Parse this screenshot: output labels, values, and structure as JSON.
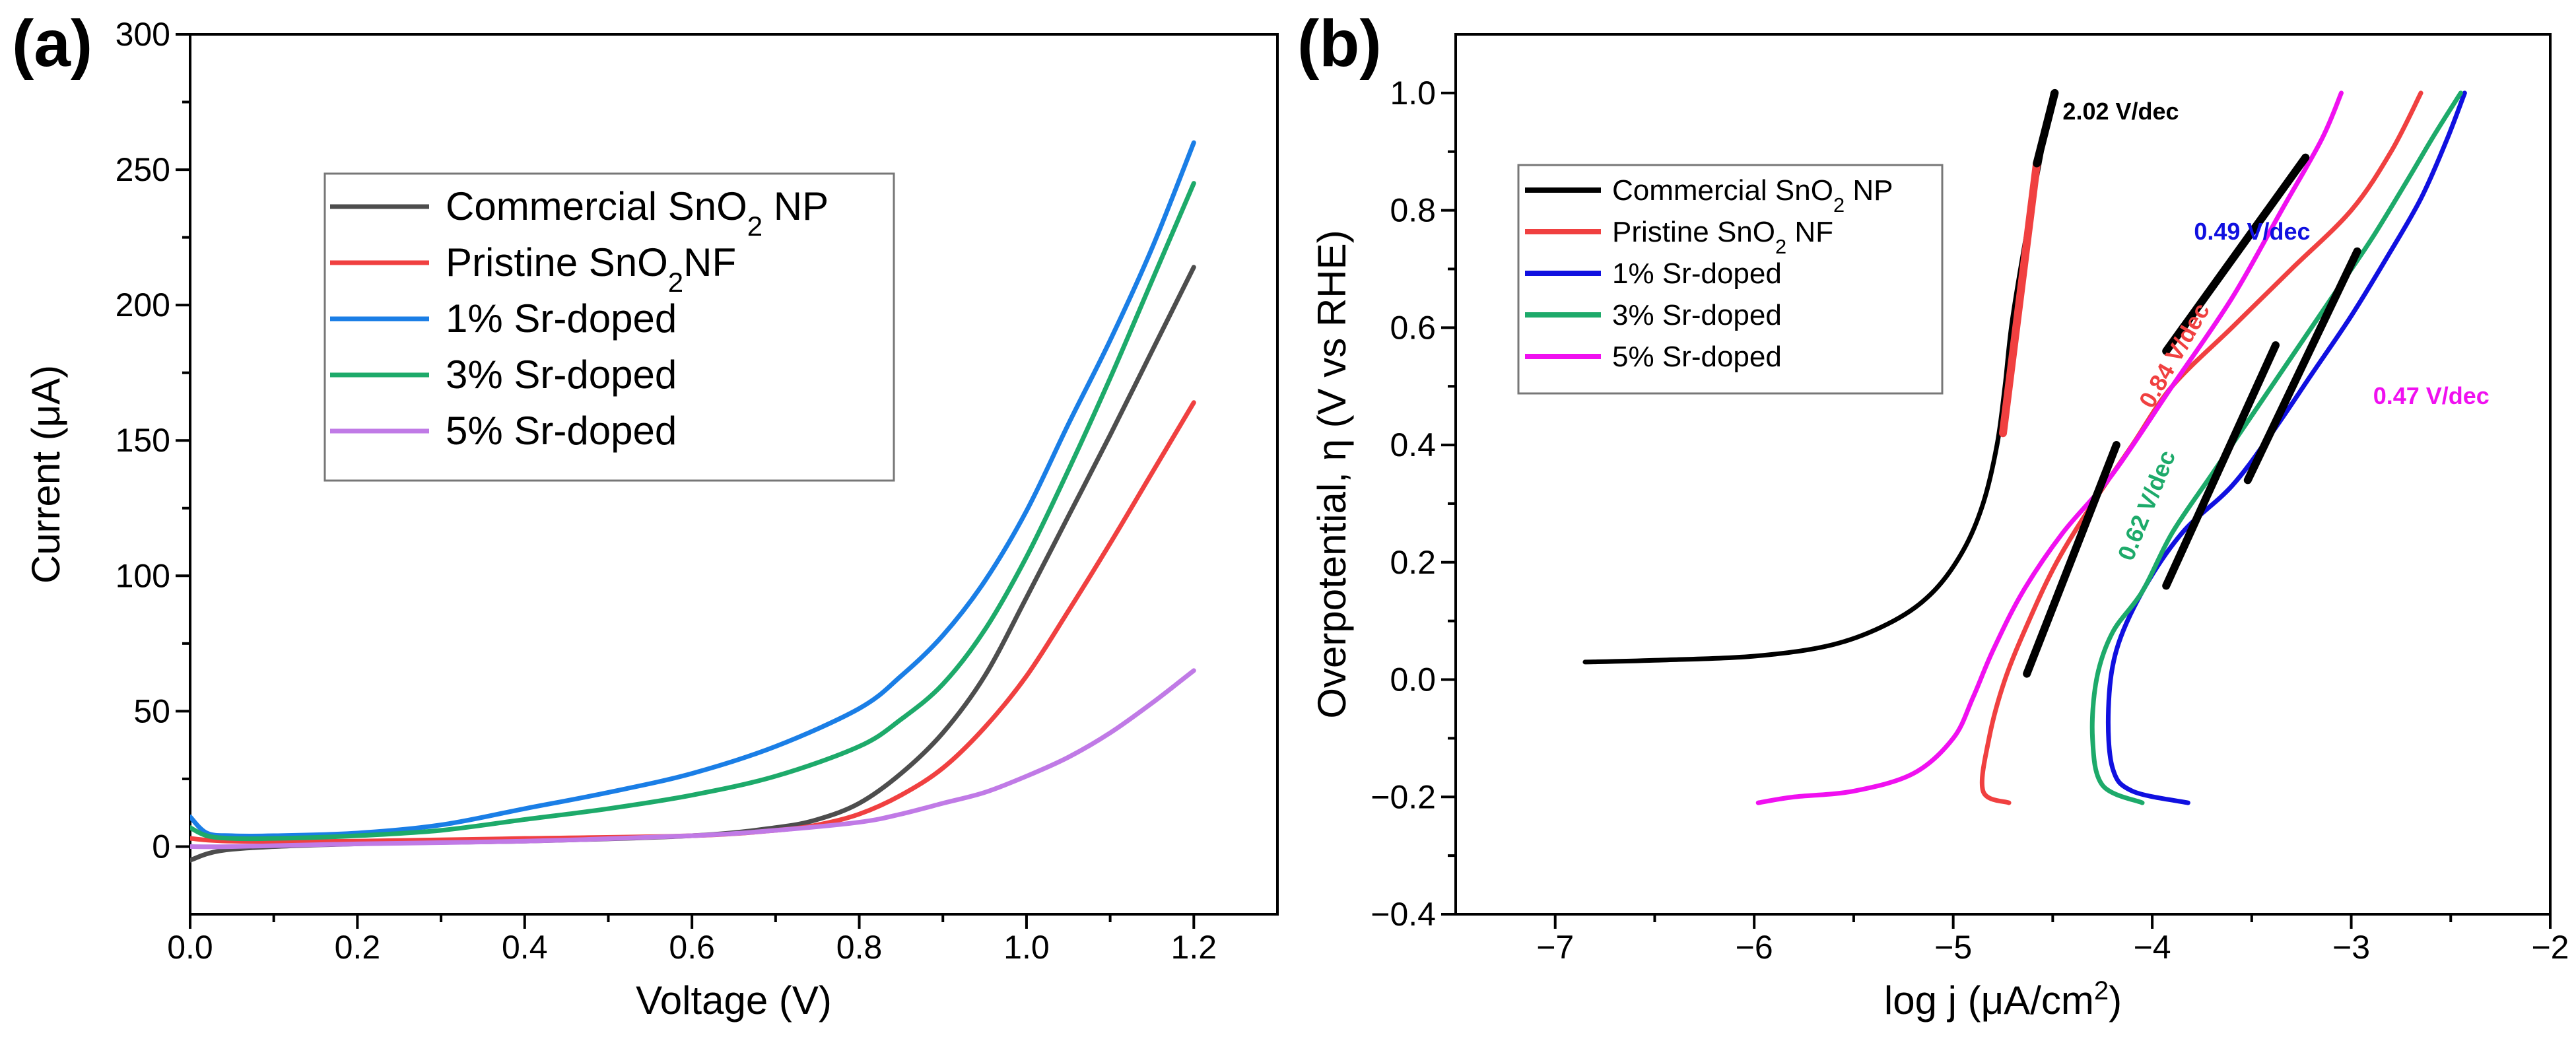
{
  "colors": {
    "commercial": "#4d4d4d",
    "pristine": "#f04040",
    "sr1": "#1a7ee6",
    "sr3": "#1daa6a",
    "sr5": "#c07ae6",
    "b_commercial": "#000000",
    "b_pristine": "#f04040",
    "b_sr1": "#1010e0",
    "b_sr3": "#1daa6a",
    "b_sr5": "#f010f0",
    "fit": "#000000"
  },
  "chart_data": [
    {
      "id": "a",
      "panel_label": "(a)",
      "type": "line",
      "xlabel": "Voltage (V)",
      "ylabel": "Current (μA)",
      "xlim": [
        0,
        1.3
      ],
      "ylim": [
        -25,
        300
      ],
      "xticks": [
        0.0,
        0.2,
        0.4,
        0.6,
        0.8,
        1.0,
        1.2
      ],
      "xtick_labels": [
        "0.0",
        "0.2",
        "0.4",
        "0.6",
        "0.8",
        "1.0",
        "1.2"
      ],
      "yticks": [
        0,
        50,
        100,
        150,
        200,
        250,
        300
      ],
      "ytick_labels": [
        "0",
        "50",
        "100",
        "150",
        "200",
        "250",
        "300"
      ],
      "legend_position": "upper-left",
      "legend": [
        {
          "series": "commercial",
          "main": "Commercial SnO",
          "sub": "2",
          "tail": " NP"
        },
        {
          "series": "pristine",
          "main": "Pristine SnO",
          "sub": "2",
          "tail": "NF"
        },
        {
          "series": "sr1",
          "main": "1% Sr-doped",
          "sub": "",
          "tail": ""
        },
        {
          "series": "sr3",
          "main": "3% Sr-doped",
          "sub": "",
          "tail": ""
        },
        {
          "series": "sr5",
          "main": "5% Sr-doped",
          "sub": "",
          "tail": ""
        }
      ],
      "series": [
        {
          "key": "commercial",
          "name": "Commercial SnO2 NP",
          "x": [
            0.0,
            0.05,
            0.2,
            0.4,
            0.6,
            0.7,
            0.75,
            0.8,
            0.85,
            0.9,
            0.95,
            1.0,
            1.05,
            1.1,
            1.15,
            1.2
          ],
          "y": [
            -5,
            -1,
            1,
            2,
            4,
            7,
            10,
            16,
            27,
            42,
            63,
            92,
            122,
            152,
            183,
            214
          ]
        },
        {
          "key": "pristine",
          "name": "Pristine SnO2NF",
          "x": [
            0.0,
            0.05,
            0.2,
            0.4,
            0.6,
            0.7,
            0.75,
            0.8,
            0.85,
            0.9,
            0.95,
            1.0,
            1.05,
            1.1,
            1.15,
            1.2
          ],
          "y": [
            3,
            2,
            2,
            3,
            4,
            6,
            8,
            12,
            19,
            29,
            44,
            63,
            87,
            112,
            138,
            164
          ]
        },
        {
          "key": "sr1",
          "name": "1% Sr-doped",
          "x": [
            0.0,
            0.02,
            0.05,
            0.1,
            0.2,
            0.3,
            0.4,
            0.5,
            0.6,
            0.7,
            0.8,
            0.85,
            0.9,
            0.95,
            1.0,
            1.05,
            1.1,
            1.15,
            1.2
          ],
          "y": [
            11,
            5,
            4,
            4,
            5,
            8,
            14,
            20,
            27,
            37,
            51,
            63,
            78,
            98,
            124,
            156,
            187,
            221,
            260
          ]
        },
        {
          "key": "sr3",
          "name": "3% Sr-doped",
          "x": [
            0.0,
            0.02,
            0.05,
            0.1,
            0.2,
            0.3,
            0.4,
            0.5,
            0.6,
            0.7,
            0.8,
            0.85,
            0.9,
            0.95,
            1.0,
            1.05,
            1.1,
            1.15,
            1.2
          ],
          "y": [
            7,
            4,
            3,
            3,
            4,
            6,
            10,
            14,
            19,
            26,
            37,
            47,
            60,
            80,
            107,
            139,
            173,
            209,
            245
          ]
        },
        {
          "key": "sr5",
          "name": "5% Sr-doped",
          "x": [
            0.0,
            0.05,
            0.2,
            0.4,
            0.6,
            0.7,
            0.8,
            0.85,
            0.9,
            0.95,
            1.0,
            1.05,
            1.1,
            1.15,
            1.2
          ],
          "y": [
            0,
            0,
            1,
            2,
            4,
            6,
            9,
            12,
            16,
            20,
            26,
            33,
            42,
            53,
            65
          ]
        }
      ]
    },
    {
      "id": "b",
      "panel_label": "(b)",
      "type": "line",
      "xlabel": "log j (μA/cm",
      "xlabel_sup": "2",
      "xlabel_tail": ")",
      "ylabel": "Overpotential, η (V vs RHE)",
      "xlim": [
        -7.5,
        -2
      ],
      "ylim": [
        -0.4,
        1.1
      ],
      "xticks": [
        -7,
        -6,
        -5,
        -4,
        -3,
        -2
      ],
      "xtick_labels": [
        "−7",
        "−6",
        "−5",
        "−4",
        "−3",
        "−2"
      ],
      "yticks": [
        -0.4,
        -0.2,
        0.0,
        0.2,
        0.4,
        0.6,
        0.8,
        1.0
      ],
      "ytick_labels": [
        "−0.4",
        "−0.2",
        "0.0",
        "0.2",
        "0.4",
        "0.6",
        "0.8",
        "1.0"
      ],
      "legend_position": "upper-left",
      "legend": [
        {
          "series": "b_commercial",
          "main": "Commercial SnO",
          "sub": "2",
          "tail": " NP"
        },
        {
          "series": "b_pristine",
          "main": "Pristine SnO",
          "sub": "2",
          "tail": " NF"
        },
        {
          "series": "b_sr1",
          "main": "1% Sr-doped",
          "sub": "",
          "tail": ""
        },
        {
          "series": "b_sr3",
          "main": "3% Sr-doped",
          "sub": "",
          "tail": ""
        },
        {
          "series": "b_sr5",
          "main": "5% Sr-doped",
          "sub": "",
          "tail": ""
        }
      ],
      "series": [
        {
          "key": "b_commercial",
          "name": "Commercial SnO2 NP",
          "x": [
            -6.85,
            -6.5,
            -6.0,
            -5.6,
            -5.3,
            -5.1,
            -4.95,
            -4.85,
            -4.78,
            -4.74,
            -4.7,
            -4.6,
            -4.5
          ],
          "y": [
            0.03,
            0.033,
            0.04,
            0.06,
            0.1,
            0.15,
            0.22,
            0.3,
            0.4,
            0.5,
            0.62,
            0.82,
            1.0
          ]
        },
        {
          "key": "b_pristine",
          "name": "Pristine SnO2 NF",
          "x": [
            -4.72,
            -4.85,
            -4.82,
            -4.74,
            -4.62,
            -4.48,
            -4.3,
            -4.1,
            -3.9,
            -3.6,
            -3.3,
            -3.0,
            -2.8,
            -2.65
          ],
          "y": [
            -0.21,
            -0.19,
            -0.1,
            0.0,
            0.1,
            0.2,
            0.3,
            0.4,
            0.5,
            0.6,
            0.7,
            0.8,
            0.9,
            1.0
          ]
        },
        {
          "key": "b_sr1",
          "name": "1% Sr-doped",
          "x": [
            -3.82,
            -4.1,
            -4.2,
            -4.22,
            -4.18,
            -4.05,
            -3.85,
            -3.6,
            -3.4,
            -3.2,
            -3.0,
            -2.82,
            -2.65,
            -2.52,
            -2.43
          ],
          "y": [
            -0.21,
            -0.19,
            -0.15,
            -0.05,
            0.05,
            0.15,
            0.25,
            0.33,
            0.42,
            0.52,
            0.62,
            0.72,
            0.82,
            0.92,
            1.0
          ]
        },
        {
          "key": "b_sr3",
          "name": "3% Sr-doped",
          "x": [
            -4.05,
            -4.25,
            -4.3,
            -4.28,
            -4.2,
            -4.05,
            -3.9,
            -3.7,
            -3.5,
            -3.3,
            -3.1,
            -2.9,
            -2.72,
            -2.58,
            -2.45
          ],
          "y": [
            -0.21,
            -0.18,
            -0.1,
            0.0,
            0.08,
            0.15,
            0.25,
            0.35,
            0.45,
            0.55,
            0.65,
            0.75,
            0.85,
            0.93,
            1.0
          ]
        },
        {
          "key": "b_sr5",
          "name": "5% Sr-doped",
          "x": [
            -5.98,
            -5.8,
            -5.5,
            -5.2,
            -5.0,
            -4.9,
            -4.8,
            -4.65,
            -4.45,
            -4.2,
            -3.9,
            -3.6,
            -3.35,
            -3.15,
            -3.05
          ],
          "y": [
            -0.21,
            -0.2,
            -0.19,
            -0.16,
            -0.1,
            -0.03,
            0.05,
            0.15,
            0.25,
            0.35,
            0.5,
            0.65,
            0.8,
            0.92,
            1.0
          ]
        }
      ],
      "fit_lines": [
        {
          "name": "fit-commercial-red",
          "color_key": "b_pristine",
          "x": [
            -4.75,
            -4.58
          ],
          "y": [
            0.42,
            0.88
          ]
        },
        {
          "name": "fit-commercial-black",
          "color_key": "fit",
          "x": [
            -4.58,
            -4.49
          ],
          "y": [
            0.88,
            1.0
          ]
        },
        {
          "name": "fit-pristine",
          "color_key": "fit",
          "x": [
            -4.63,
            -4.18
          ],
          "y": [
            0.01,
            0.4
          ]
        },
        {
          "name": "fit-sr3",
          "color_key": "fit",
          "x": [
            -3.93,
            -3.38
          ],
          "y": [
            0.16,
            0.57
          ]
        },
        {
          "name": "fit-sr1",
          "color_key": "fit",
          "x": [
            -3.52,
            -2.97
          ],
          "y": [
            0.34,
            0.73
          ]
        },
        {
          "name": "fit-sr5",
          "color_key": "fit",
          "x": [
            -3.93,
            -3.23
          ],
          "y": [
            0.56,
            0.89
          ]
        }
      ],
      "annotations": [
        {
          "text": "2.02 V/dec",
          "color_key": "b_commercial",
          "x": -4.45,
          "y": 0.955,
          "rotate": 0
        },
        {
          "text": "0.49 V/dec",
          "color_key": "b_sr1",
          "x": -3.79,
          "y": 0.75,
          "rotate": 0
        },
        {
          "text": "0.84 V/dec",
          "color_key": "b_pristine",
          "x": -4.0,
          "y": 0.46,
          "rotate": -60
        },
        {
          "text": "0.62 V/dec",
          "color_key": "b_sr3",
          "x": -4.1,
          "y": 0.2,
          "rotate": -68
        },
        {
          "text": "0.47 V/dec",
          "color_key": "b_sr5",
          "x": -2.89,
          "y": 0.47,
          "rotate": 0
        }
      ]
    }
  ]
}
